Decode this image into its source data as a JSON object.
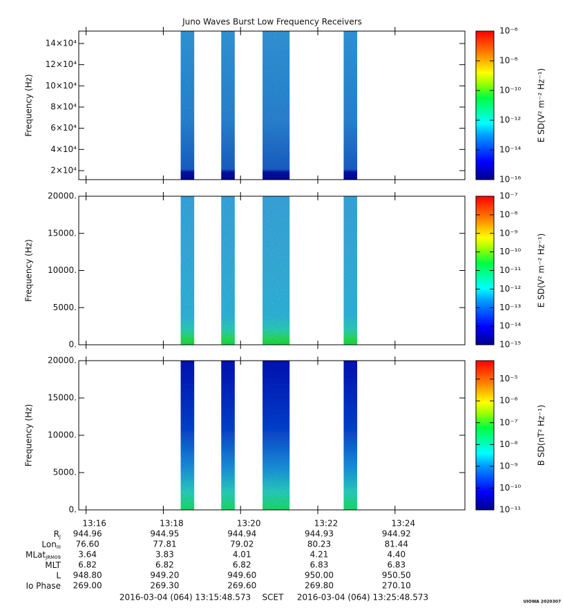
{
  "chart_data": [
    {
      "type": "spectrogram",
      "title": "Juno Waves Burst Low Frequency Receivers",
      "ylabel": "Frequency (Hz)",
      "ylim": [
        11500,
        151700
      ],
      "yticks": [
        {
          "value": 20000,
          "label": "2×10⁴"
        },
        {
          "value": 40000,
          "label": "4×10⁴"
        },
        {
          "value": 60000,
          "label": "6×10⁴"
        },
        {
          "value": 80000,
          "label": "8×10⁴"
        },
        {
          "value": 100000,
          "label": "10×10⁴"
        },
        {
          "value": 120000,
          "label": "12×10⁴"
        },
        {
          "value": 140000,
          "label": "14×10⁴"
        }
      ],
      "bursts": [
        [
          18.45,
          18.8
        ],
        [
          19.5,
          19.85
        ],
        [
          20.57,
          21.27
        ],
        [
          22.67,
          23.02
        ]
      ],
      "colorbar": {
        "label": "E SD(V² m⁻² Hz⁻¹)",
        "log": true,
        "lim": [
          1e-16,
          1e-06
        ],
        "ticks": [
          {
            "value": 1e-06,
            "label": "10⁻⁶"
          },
          {
            "value": 1e-08,
            "label": "10⁻⁸"
          },
          {
            "value": 1e-10,
            "label": "10⁻¹⁰"
          },
          {
            "value": 1e-12,
            "label": "10⁻¹²"
          },
          {
            "value": 1e-14,
            "label": "10⁻¹⁴"
          },
          {
            "value": 1e-16,
            "label": "10⁻¹⁶"
          }
        ]
      }
    },
    {
      "type": "spectrogram",
      "ylabel": "Frequency (Hz)",
      "ylim": [
        0,
        20000
      ],
      "yticks": [
        {
          "value": 0,
          "label": "0."
        },
        {
          "value": 5000,
          "label": "5000."
        },
        {
          "value": 10000,
          "label": "10000."
        },
        {
          "value": 15000,
          "label": "15000."
        },
        {
          "value": 20000,
          "label": "20000."
        }
      ],
      "bursts": [
        [
          18.45,
          18.8
        ],
        [
          19.5,
          19.85
        ],
        [
          20.57,
          21.27
        ],
        [
          22.67,
          23.02
        ]
      ],
      "colorbar": {
        "label": "E SD(V² m⁻² Hz⁻¹)",
        "log": true,
        "lim": [
          1e-15,
          1e-07
        ],
        "ticks": [
          {
            "value": 1e-07,
            "label": "10⁻⁷"
          },
          {
            "value": 1e-08,
            "label": "10⁻⁸"
          },
          {
            "value": 1e-09,
            "label": "10⁻⁹"
          },
          {
            "value": 1e-10,
            "label": "10⁻¹⁰"
          },
          {
            "value": 1e-11,
            "label": "10⁻¹¹"
          },
          {
            "value": 1e-12,
            "label": "10⁻¹²"
          },
          {
            "value": 1e-13,
            "label": "10⁻¹³"
          },
          {
            "value": 1e-14,
            "label": "10⁻¹⁴"
          },
          {
            "value": 1e-15,
            "label": "10⁻¹⁵"
          }
        ]
      }
    },
    {
      "type": "spectrogram",
      "ylabel": "Frequency (Hz)",
      "ylim": [
        0,
        20000
      ],
      "yticks": [
        {
          "value": 0,
          "label": "0."
        },
        {
          "value": 5000,
          "label": "5000."
        },
        {
          "value": 10000,
          "label": "10000."
        },
        {
          "value": 15000,
          "label": "15000."
        },
        {
          "value": 20000,
          "label": "20000."
        }
      ],
      "bursts": [
        [
          18.45,
          18.8
        ],
        [
          19.5,
          19.85
        ],
        [
          20.57,
          21.27
        ],
        [
          22.67,
          23.02
        ]
      ],
      "colorbar": {
        "label": "B SD(nT² Hz⁻¹)",
        "log": true,
        "lim": [
          1e-11,
          7e-05
        ],
        "ticks": [
          {
            "value": 1e-05,
            "label": "10⁻⁵"
          },
          {
            "value": 1e-06,
            "label": "10⁻⁶"
          },
          {
            "value": 1e-07,
            "label": "10⁻⁷"
          },
          {
            "value": 1e-08,
            "label": "10⁻⁸"
          },
          {
            "value": 1e-09,
            "label": "10⁻⁹"
          },
          {
            "value": 1e-10,
            "label": "10⁻¹⁰"
          },
          {
            "value": 1e-11,
            "label": "10⁻¹¹"
          }
        ]
      },
      "xlim": [
        15.81,
        25.81
      ],
      "xticks": [
        {
          "value": 16,
          "label": "13:16"
        },
        {
          "value": 18,
          "label": "13:18"
        },
        {
          "value": 20,
          "label": "13:20"
        },
        {
          "value": 22,
          "label": "13:22"
        },
        {
          "value": 24,
          "label": "13:24"
        }
      ]
    }
  ],
  "ephemeris": {
    "rows": [
      {
        "label": "R",
        "sub": "J",
        "values": [
          "944.96",
          "944.95",
          "944.94",
          "944.93",
          "944.92"
        ]
      },
      {
        "label": "Lon",
        "sub": "III",
        "values": [
          "76.60",
          "77.81",
          "79.02",
          "80.23",
          "81.44"
        ]
      },
      {
        "label": "MLat",
        "sub": "JRM09",
        "values": [
          "3.64",
          "3.83",
          "4.01",
          "4.21",
          "4.40"
        ]
      },
      {
        "label": "MLT",
        "values": [
          "6.82",
          "6.82",
          "6.82",
          "6.83",
          "6.83"
        ]
      },
      {
        "label": "L",
        "values": [
          "948.80",
          "949.20",
          "949.60",
          "950.00",
          "950.50"
        ]
      },
      {
        "label": "Io Phase",
        "values": [
          "269.00",
          "269.30",
          "269.60",
          "269.80",
          "270.10"
        ]
      }
    ]
  },
  "footer": {
    "start": "2016-03-04 (064) 13:15:48.573",
    "frame": "SCET",
    "end": "2016-03-04 (064) 13:25:48.573",
    "stamp": "UIOWA 2020307"
  }
}
